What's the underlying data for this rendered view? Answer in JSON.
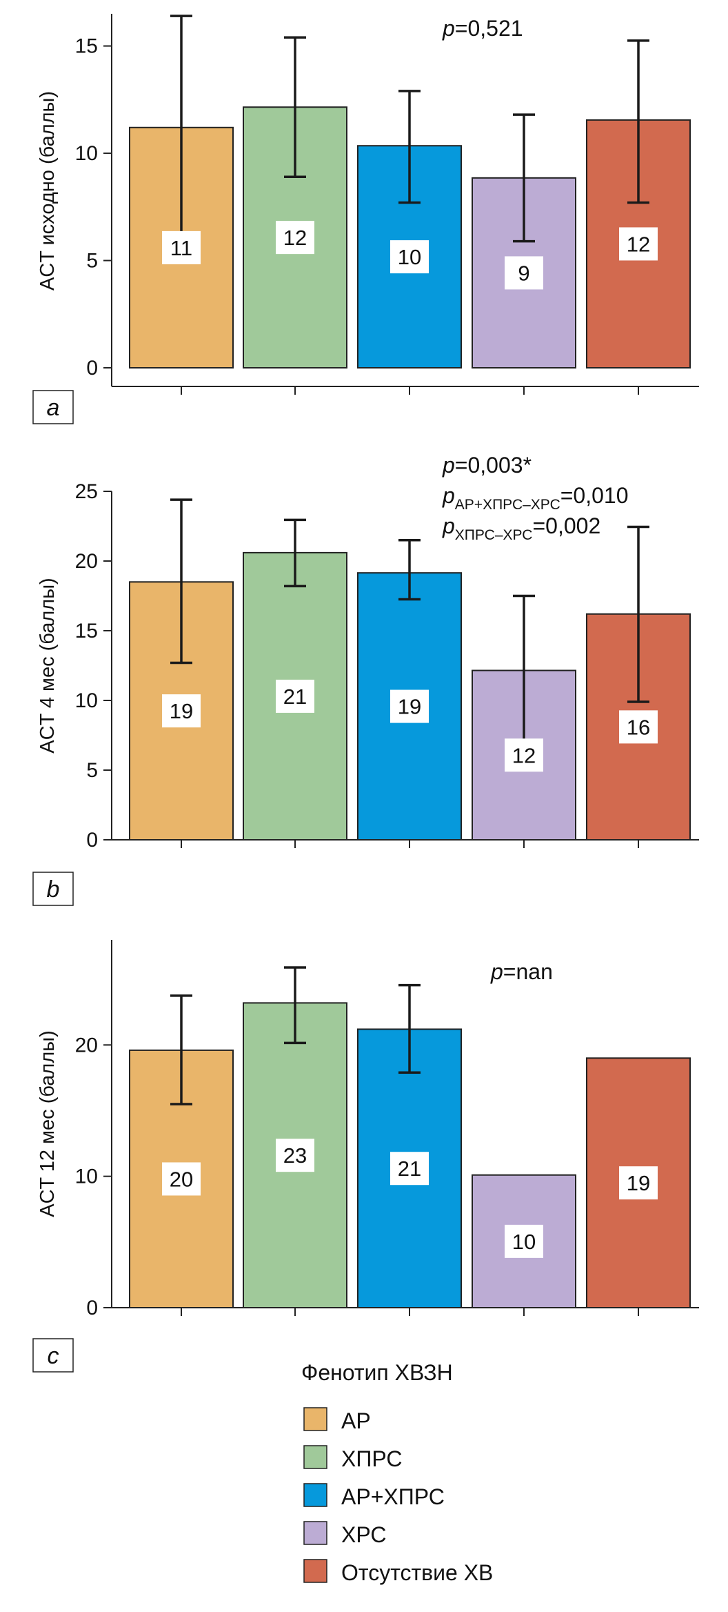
{
  "categories": [
    "АР",
    "ХПРС",
    "АР+ХПРС",
    "ХРС",
    "Отсутствие ХВ"
  ],
  "colors": {
    "АР": "#e9b56a",
    "ХПРС": "#a0c99a",
    "АР+ХПРС": "#0699dc",
    "ХРС": "#bcacd4",
    "Отсутствие ХВ": "#d26a4f"
  },
  "legend": {
    "title": "Фенотип ХВЗН",
    "items": [
      "АР",
      "ХПРС",
      "АР+ХПРС",
      "ХРС",
      "Отсутствие ХВ"
    ]
  },
  "chart_data": [
    {
      "type": "bar",
      "panel": "a",
      "ylabel": "ACT исходно (баллы)",
      "ylim": [
        0,
        16.5
      ],
      "yticks": [
        0,
        5,
        10,
        15
      ],
      "categories": [
        "АР",
        "ХПРС",
        "АР+ХПРС",
        "ХРС",
        "Отсутствие ХВ"
      ],
      "values": [
        11.2,
        12.15,
        10.35,
        8.85,
        11.55
      ],
      "value_labels": [
        "11",
        "12",
        "10",
        "9",
        "12"
      ],
      "error_low": [
        6.1,
        8.9,
        7.7,
        5.9,
        7.7
      ],
      "error_high": [
        16.4,
        15.4,
        12.9,
        11.8,
        15.25
      ],
      "p_lines": [
        {
          "p": "p",
          "sub": "",
          "text": "=0,521"
        }
      ]
    },
    {
      "type": "bar",
      "panel": "b",
      "ylabel": "ACT 4 мес (баллы)",
      "ylim": [
        0,
        25
      ],
      "yticks": [
        0,
        5,
        10,
        15,
        20,
        25
      ],
      "categories": [
        "АР",
        "ХПРС",
        "АР+ХПРС",
        "ХРС",
        "Отсутствие ХВ"
      ],
      "values": [
        18.5,
        20.6,
        19.15,
        12.15,
        16.2
      ],
      "value_labels": [
        "19",
        "21",
        "19",
        "12",
        "16"
      ],
      "error_low": [
        12.7,
        18.2,
        17.25,
        6.8,
        9.9
      ],
      "error_high": [
        24.4,
        22.95,
        21.5,
        17.5,
        22.45
      ],
      "p_lines": [
        {
          "p": "p",
          "sub": "",
          "text": "=0,003*"
        },
        {
          "p": "p",
          "sub": "АР+ХПРС–ХРС",
          "text": "=0,010"
        },
        {
          "p": "p",
          "sub": "ХПРС–ХРС",
          "text": "=0,002"
        }
      ]
    },
    {
      "type": "bar",
      "panel": "c",
      "ylabel": "ACT 12 мес (баллы)",
      "ylim": [
        0,
        28
      ],
      "yticks": [
        0,
        10,
        20
      ],
      "categories": [
        "АР",
        "ХПРС",
        "АР+ХПРС",
        "ХРС",
        "Отсутствие ХВ"
      ],
      "values": [
        19.6,
        23.2,
        21.2,
        10.1,
        19.0
      ],
      "value_labels": [
        "20",
        "23",
        "21",
        "10",
        "19"
      ],
      "error_low": [
        15.5,
        20.15,
        17.9,
        null,
        null
      ],
      "error_high": [
        23.75,
        25.9,
        24.55,
        null,
        null
      ],
      "p_lines": [
        {
          "p": "p",
          "sub": "",
          "text": "=nan"
        }
      ]
    }
  ]
}
